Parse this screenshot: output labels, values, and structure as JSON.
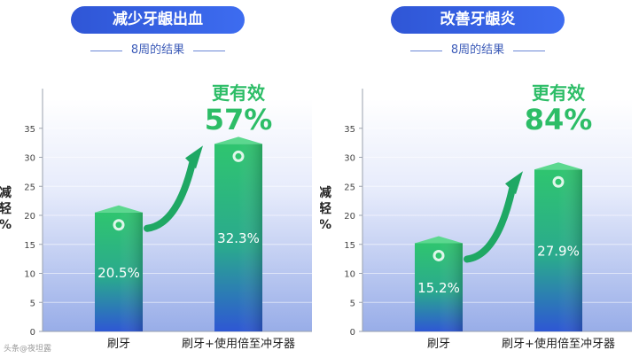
{
  "watermark": "头条@夜坦露",
  "chart_data": [
    {
      "type": "bar",
      "title": "减少牙龈出血",
      "subtitle": "8周的结果",
      "ylabel": "减轻%",
      "ylim": [
        0,
        40
      ],
      "yticks": [
        0,
        5,
        10,
        15,
        20,
        25,
        30,
        35
      ],
      "categories": [
        "刷牙",
        "刷牙+使用倍至冲牙器"
      ],
      "values": [
        20.5,
        32.3
      ],
      "value_labels": [
        "20.5%",
        "32.3%"
      ],
      "highlight_label": "更有效",
      "highlight_value": "57%",
      "colors": {
        "bar_top": "#2fc56f",
        "bar_bottom": "#2e57d4",
        "highlight": "#2dbd67",
        "pill": "#3461e0"
      }
    },
    {
      "type": "bar",
      "title": "改善牙龈炎",
      "subtitle": "8周的结果",
      "ylabel": "减轻%",
      "ylim": [
        0,
        40
      ],
      "yticks": [
        0,
        5,
        10,
        15,
        20,
        25,
        30,
        35
      ],
      "categories": [
        "刷牙",
        "刷牙+使用倍至冲牙器"
      ],
      "values": [
        15.2,
        27.9
      ],
      "value_labels": [
        "15.2%",
        "27.9%"
      ],
      "highlight_label": "更有效",
      "highlight_value": "84%",
      "colors": {
        "bar_top": "#2fc56f",
        "bar_bottom": "#2e57d4",
        "highlight": "#2dbd67",
        "pill": "#3461e0"
      }
    }
  ]
}
